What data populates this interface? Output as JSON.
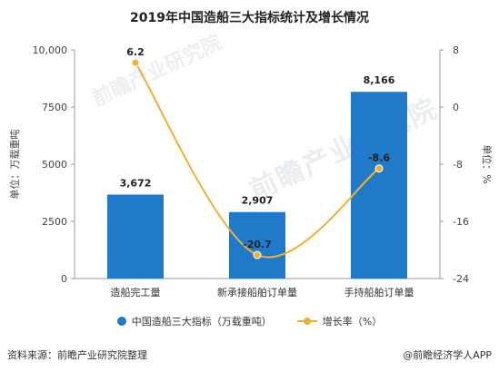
{
  "title": "2019年中国造船三大指标统计及增长情况",
  "watermark": "前瞻产业研究院",
  "footer": {
    "source": "资料来源：前瞻产业研究院整理",
    "brand": "@前瞻经济学人APP"
  },
  "chart_data": {
    "type": "bar",
    "categories": [
      "造船完工量",
      "新承接船舶订单量",
      "手持船舶订单量"
    ],
    "series": [
      {
        "name": "中国造船三大指标（万载重吨）",
        "type": "bar",
        "axis": "left",
        "values": [
          3672,
          2907,
          8166
        ],
        "labels": [
          "3,672",
          "2,907",
          "8,166"
        ],
        "color": "#1f7ac9"
      },
      {
        "name": "增长率（%）",
        "type": "line",
        "axis": "right",
        "values": [
          6.2,
          -20.7,
          -8.6
        ],
        "labels": [
          "6.2",
          "-20.7",
          "-8.6"
        ],
        "color": "#f0b030"
      }
    ],
    "ylabel": "单位：万载重吨",
    "y2label": "单位：%",
    "ylim": [
      0,
      10000
    ],
    "yticks": [
      "0",
      "2500",
      "5000",
      "7500",
      "10,000"
    ],
    "y2lim": [
      -24,
      8
    ],
    "y2ticks": [
      "-24",
      "-16",
      "-8",
      "0",
      "8"
    ],
    "grid": false,
    "legend": "bottom"
  }
}
